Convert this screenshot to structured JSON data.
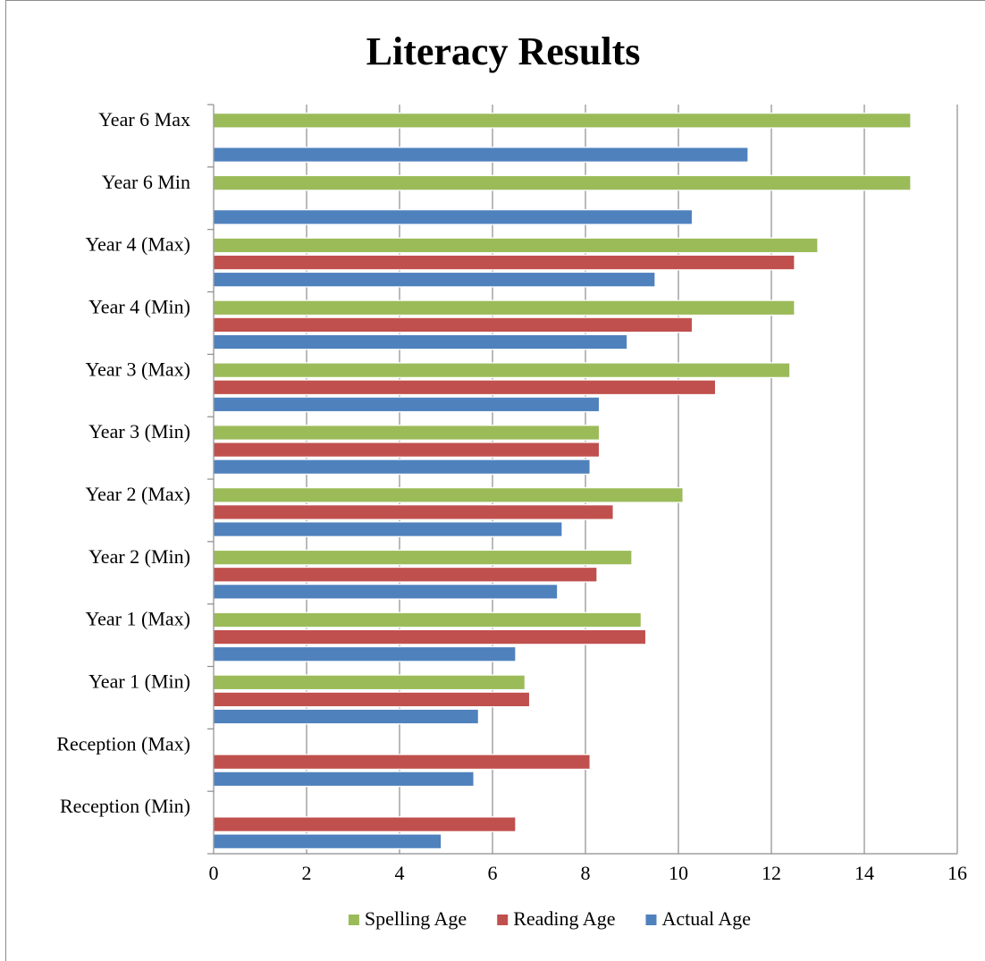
{
  "chart_data": {
    "type": "bar",
    "orientation": "horizontal",
    "title": "Literacy Results",
    "xlabel": "",
    "ylabel": "",
    "xlim": [
      0,
      16
    ],
    "x_ticks": [
      0,
      2,
      4,
      6,
      8,
      10,
      12,
      14,
      16
    ],
    "grid": true,
    "legend_position": "bottom",
    "categories": [
      "Year 6 Max",
      "Year 6 Min",
      "Year 4 (Max)",
      "Year 4 (Min)",
      "Year 3 (Max)",
      "Year 3 (Min)",
      "Year 2 (Max)",
      "Year 2 (Min)",
      "Year 1 (Max)",
      "Year 1 (Min)",
      "Reception (Max)",
      "Reception (Min)"
    ],
    "series": [
      {
        "name": "Spelling Age",
        "color": "#9BBB59",
        "values": [
          15,
          15,
          13,
          12.5,
          12.4,
          8.3,
          10.1,
          9,
          9.2,
          6.7,
          null,
          null
        ]
      },
      {
        "name": "Reading Age",
        "color": "#C0504D",
        "values": [
          null,
          null,
          12.5,
          10.3,
          10.8,
          8.3,
          8.6,
          8.25,
          9.3,
          6.8,
          8.1,
          6.5
        ]
      },
      {
        "name": "Actual Age",
        "color": "#4F81BD",
        "values": [
          11.5,
          10.3,
          9.5,
          8.9,
          8.3,
          8.1,
          7.5,
          7.4,
          6.5,
          5.7,
          5.6,
          4.9
        ]
      }
    ]
  }
}
